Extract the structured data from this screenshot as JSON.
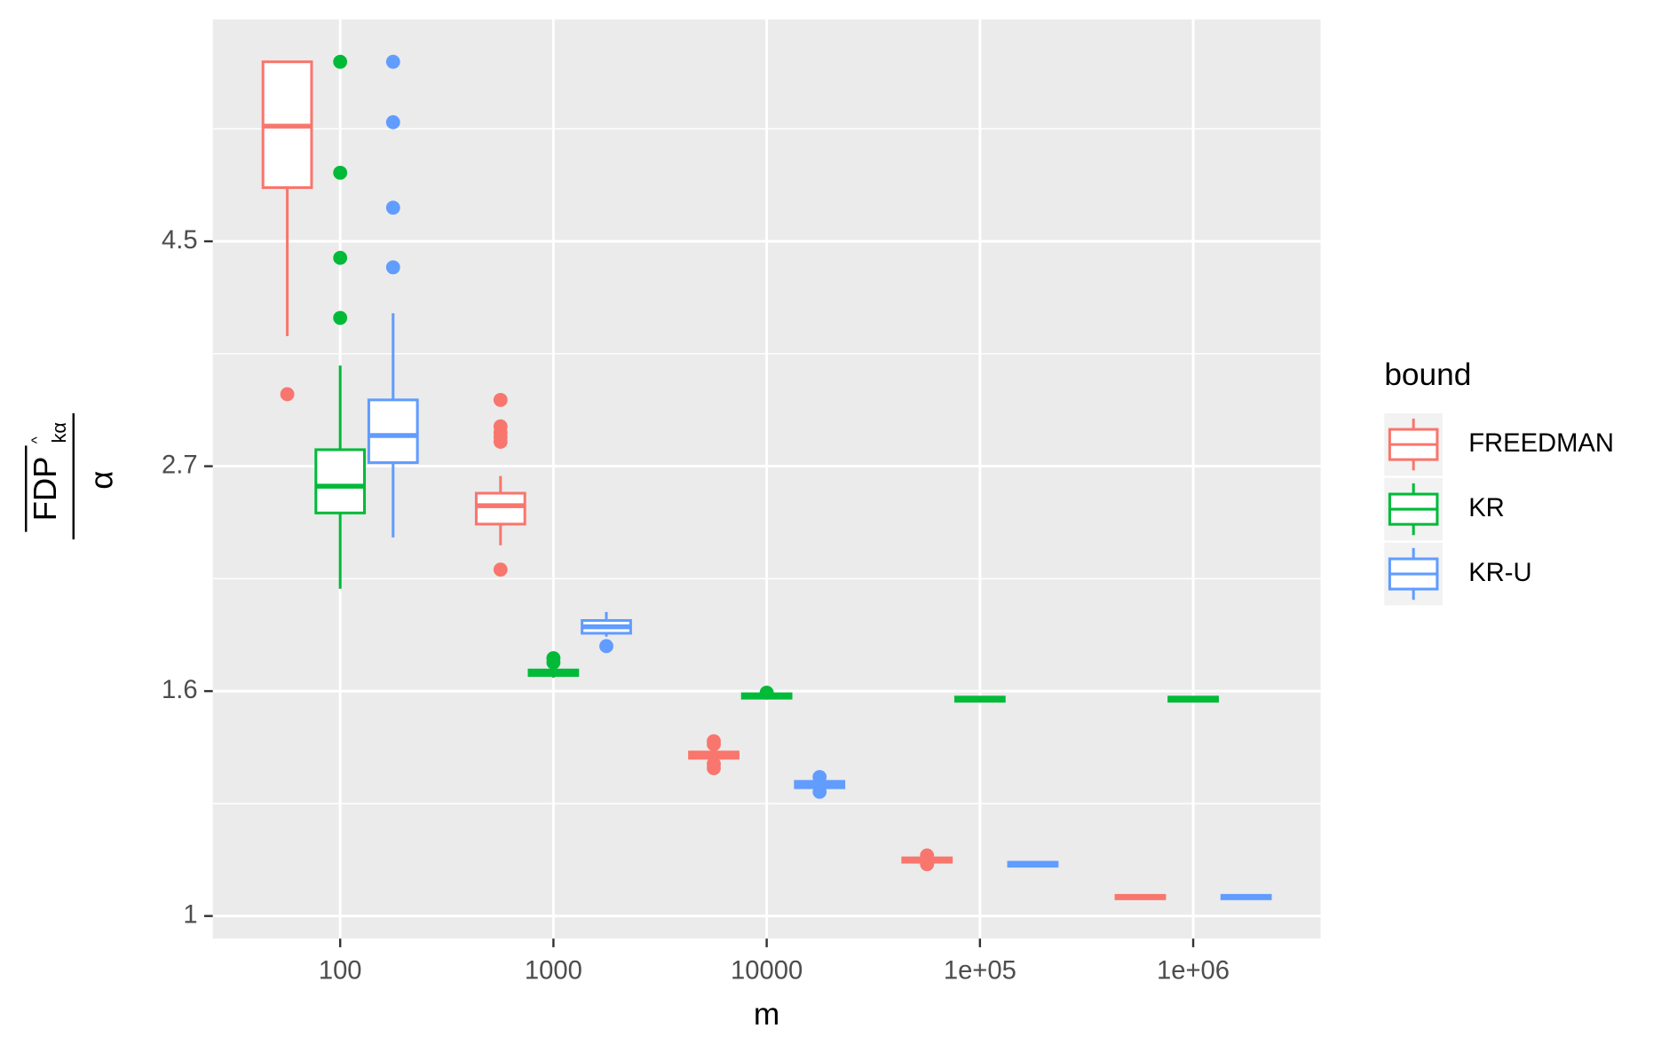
{
  "chart_data": {
    "type": "boxplot",
    "x_label": "m",
    "y_label": {
      "numerator": "FDP",
      "subscript": "kα",
      "denominator": "α"
    },
    "categories": [
      "100",
      "1000",
      "10000",
      "1e+05",
      "1e+06"
    ],
    "ylim": [
      0.951,
      7.34
    ],
    "log_y": true,
    "grid": true,
    "yticks": [
      {
        "value": 1,
        "label": "1"
      },
      {
        "value": 1.6487,
        "label": "1.6"
      },
      {
        "value": 2.7183,
        "label": "2.7"
      },
      {
        "value": 4.4817,
        "label": "4.5"
      }
    ],
    "legend_title": "bound",
    "legend_position": "right",
    "series": [
      {
        "name": "FREEDMAN",
        "color": "#F8766D",
        "boxes": [
          {
            "low": 3.63,
            "q1": 5.05,
            "median": 5.79,
            "q3": 6.68,
            "high": 6.68,
            "outliers": [
              3.19
            ]
          },
          {
            "low": 2.28,
            "q1": 2.39,
            "median": 2.49,
            "q3": 2.56,
            "high": 2.66,
            "outliers": [
              2.16,
              3.15,
              2.97,
              2.93,
              2.9,
              2.87
            ]
          },
          {
            "low": 1.413,
            "q1": 1.42,
            "median": 1.43,
            "q3": 1.44,
            "high": 1.447,
            "outliers": [
              1.475,
              1.465,
              1.402,
              1.389
            ]
          },
          {
            "low": 1.127,
            "q1": 1.127,
            "median": 1.133,
            "q3": 1.138,
            "high": 1.138,
            "outliers": [
              1.144,
              1.122
            ]
          },
          {
            "low": 1.037,
            "q1": 1.039,
            "median": 1.044,
            "q3": 1.047,
            "high": 1.049,
            "outliers": []
          }
        ]
      },
      {
        "name": "KR",
        "color": "#00BA38",
        "boxes": [
          {
            "low": 2.07,
            "q1": 2.45,
            "median": 2.6,
            "q3": 2.82,
            "high": 3.4,
            "outliers": [
              6.68,
              5.22,
              4.32,
              3.78
            ]
          },
          {
            "low": 1.699,
            "q1": 1.707,
            "median": 1.719,
            "q3": 1.728,
            "high": 1.736,
            "outliers": [
              1.774,
              1.757
            ]
          },
          {
            "low": 1.623,
            "q1": 1.623,
            "median": 1.631,
            "q3": 1.639,
            "high": 1.639,
            "outliers": [
              1.643
            ]
          },
          {
            "low": 1.612,
            "q1": 1.612,
            "median": 1.619,
            "q3": 1.627,
            "high": 1.627,
            "outliers": []
          },
          {
            "low": 1.612,
            "q1": 1.612,
            "median": 1.619,
            "q3": 1.627,
            "high": 1.627,
            "outliers": []
          }
        ]
      },
      {
        "name": "KR-U",
        "color": "#619CFF",
        "boxes": [
          {
            "low": 2.32,
            "q1": 2.74,
            "median": 2.91,
            "q3": 3.15,
            "high": 3.82,
            "outliers": [
              6.68,
              5.84,
              4.83,
              4.23
            ]
          },
          {
            "low": 1.861,
            "q1": 1.875,
            "median": 1.902,
            "q3": 1.929,
            "high": 1.966,
            "outliers": [
              1.822
            ]
          },
          {
            "low": 1.33,
            "q1": 1.33,
            "median": 1.34,
            "q3": 1.349,
            "high": 1.349,
            "outliers": [
              1.362,
              1.318
            ]
          },
          {
            "low": 1.117,
            "q1": 1.117,
            "median": 1.122,
            "q3": 1.127,
            "high": 1.127,
            "outliers": []
          },
          {
            "low": 1.039,
            "q1": 1.039,
            "median": 1.042,
            "q3": 1.047,
            "high": 1.047,
            "outliers": []
          }
        ]
      }
    ]
  }
}
